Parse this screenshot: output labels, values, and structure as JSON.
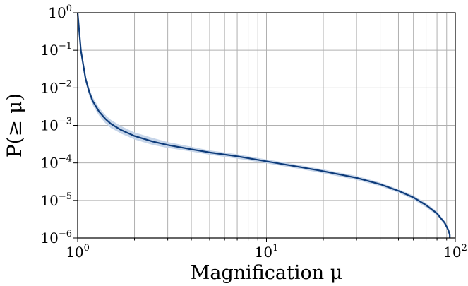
{
  "chart_data": {
    "type": "line",
    "title": "",
    "xlabel": "Magnification μ",
    "ylabel": "P(≥ μ)",
    "xscale": "log",
    "yscale": "log",
    "xlim": [
      1,
      100
    ],
    "ylim": [
      1e-06,
      1
    ],
    "grid": true,
    "legend": "none",
    "x_tick_labels": [
      {
        "value": 1,
        "base": "10",
        "exp": "0"
      },
      {
        "value": 10,
        "base": "10",
        "exp": "1"
      },
      {
        "value": 100,
        "base": "10",
        "exp": "2"
      }
    ],
    "y_tick_labels": [
      {
        "value": 1,
        "base": "10",
        "exp": "0"
      },
      {
        "value": 0.1,
        "base": "10",
        "exp": "−1"
      },
      {
        "value": 0.01,
        "base": "10",
        "exp": "−2"
      },
      {
        "value": 0.001,
        "base": "10",
        "exp": "−3"
      },
      {
        "value": 0.0001,
        "base": "10",
        "exp": "−4"
      },
      {
        "value": 1e-05,
        "base": "10",
        "exp": "−5"
      },
      {
        "value": 1e-06,
        "base": "10",
        "exp": "−6"
      }
    ],
    "colors": {
      "line": "#0d3b7a",
      "band": "#c3d3e8",
      "grid": "#b0b0b0",
      "axes": "#000000"
    },
    "series": [
      {
        "x": [
          1.0,
          1.04,
          1.1,
          1.15,
          1.2,
          1.3,
          1.4,
          1.5,
          1.7,
          2.0,
          2.5,
          3.0,
          4.0,
          5.0,
          7.0,
          10.0,
          15.0,
          20.0,
          30.0,
          40.0,
          50.0,
          60.0,
          70.0,
          80.0,
          88.0,
          92.0,
          93.5
        ],
        "y": [
          1.0,
          0.1,
          0.018,
          0.008,
          0.0045,
          0.0023,
          0.0015,
          0.0011,
          0.00075,
          0.00052,
          0.00037,
          0.0003,
          0.00023,
          0.00019,
          0.00015,
          0.00011,
          7.8e-05,
          6e-05,
          4e-05,
          2.7e-05,
          1.8e-05,
          1.2e-05,
          7.5e-06,
          4.5e-06,
          2.5e-06,
          1.6e-06,
          1.2e-06
        ],
        "y_lower": [
          1.0,
          0.08,
          0.014,
          0.0062,
          0.0035,
          0.0018,
          0.00115,
          0.00085,
          0.0006,
          0.00042,
          0.0003,
          0.00025,
          0.0002,
          0.000165,
          0.00013,
          9.75e-05,
          6.9e-05,
          5.3e-05,
          3.5e-05,
          2.4e-05,
          1.6e-05,
          1.05e-05,
          6.5e-06,
          4e-06,
          2.2e-06,
          1.4e-06,
          1e-06
        ],
        "y_upper": [
          1.0,
          0.12,
          0.022,
          0.01,
          0.0057,
          0.0029,
          0.0019,
          0.0014,
          0.00095,
          0.00065,
          0.00046,
          0.00036,
          0.00027,
          0.000215,
          0.00017,
          0.000124,
          8.7e-05,
          6.7e-05,
          4.5e-05,
          3e-05,
          2e-05,
          1.35e-05,
          8.5e-06,
          5.1e-06,
          2.8e-06,
          1.8e-06,
          1.4e-06
        ]
      }
    ]
  }
}
